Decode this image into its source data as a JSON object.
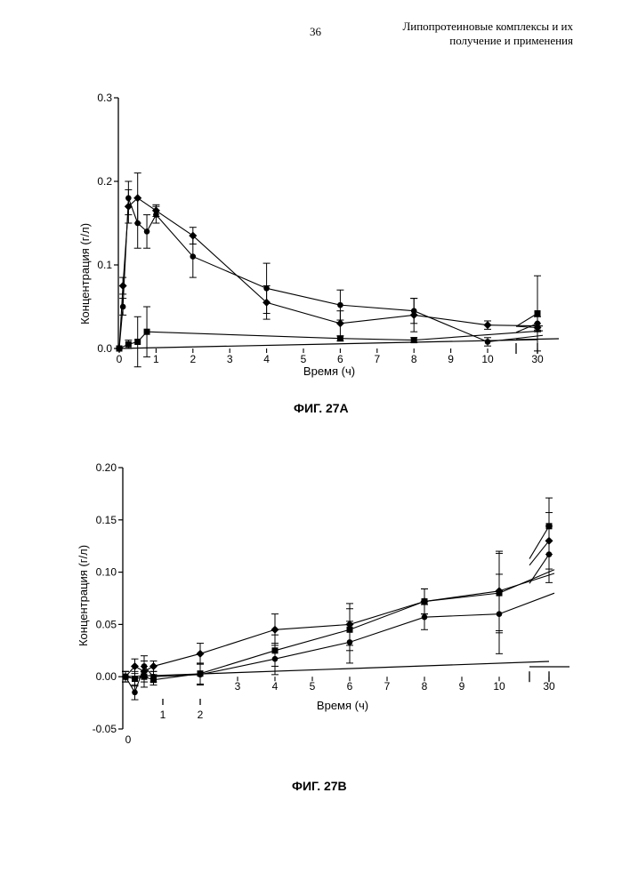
{
  "header": {
    "page_number": "36",
    "title_line1": "Липопротеиновые комплексы и их",
    "title_line2": "получение и применения"
  },
  "figures": [
    {
      "caption": "ФИГ. 27А",
      "xlabel": "Время (ч)",
      "ylabel": "Концентрация (г/л)",
      "y_ticks": [
        "0.0",
        "0.1",
        "0.2",
        "0.3"
      ],
      "x_ticks": [
        "0",
        "1",
        "2",
        "3",
        "4",
        "5",
        "6",
        "7",
        "8",
        "9",
        "10",
        "30"
      ]
    },
    {
      "caption": "ФИГ. 27В",
      "xlabel": "Время (ч)",
      "ylabel": "Концентрация (г/л)",
      "y_ticks": [
        "-0.05",
        "0.00",
        "0.05",
        "0.10",
        "0.15",
        "0.20"
      ],
      "x_ticks_top": [
        "3",
        "4",
        "5",
        "6",
        "7",
        "8",
        "9",
        "10",
        "30"
      ],
      "x_ticks_bottom": [
        "0",
        "1",
        "2"
      ]
    }
  ],
  "chart_data": [
    {
      "type": "line",
      "xlabel": "Время (ч)",
      "ylabel": "Концентрация (г/л)",
      "ylim": [
        0,
        0.3
      ],
      "xlim": [
        0,
        30
      ],
      "axis_break": [
        10.5,
        29
      ],
      "series": [
        {
          "marker": "diamond",
          "points": [
            [
              0,
              0
            ],
            [
              0.1,
              0.075
            ],
            [
              0.25,
              0.17
            ],
            [
              0.5,
              0.18
            ],
            [
              1,
              0.165
            ],
            [
              2,
              0.135
            ],
            [
              4,
              0.055
            ],
            [
              6,
              0.03
            ],
            [
              8,
              0.04
            ],
            [
              10,
              0.028
            ],
            [
              30,
              0.025
            ]
          ],
          "err": [
            0,
            0.01,
            0.02,
            0.03,
            0.007,
            0.01,
            0.02,
            0.015,
            0.02,
            0.005,
            0.005
          ]
        },
        {
          "marker": "circle",
          "points": [
            [
              0,
              0
            ],
            [
              0.1,
              0.05
            ],
            [
              0.25,
              0.18
            ],
            [
              0.5,
              0.15
            ],
            [
              0.75,
              0.14
            ],
            [
              1,
              0.16
            ],
            [
              2,
              0.11
            ],
            [
              4,
              0.072
            ],
            [
              6,
              0.052
            ],
            [
              8,
              0.045
            ],
            [
              10,
              0.008
            ],
            [
              30,
              0.03
            ]
          ],
          "err": [
            0,
            0.01,
            0.02,
            0.03,
            0.02,
            0.01,
            0.025,
            0.03,
            0.018,
            0.015,
            0.005,
            0.008
          ]
        },
        {
          "marker": "square",
          "points": [
            [
              0,
              0
            ],
            [
              0.25,
              0.005
            ],
            [
              0.5,
              0.008
            ],
            [
              0.75,
              0.02
            ],
            [
              6,
              0.012
            ],
            [
              8,
              0.01
            ],
            [
              30,
              0.042
            ]
          ],
          "err": [
            0,
            0.005,
            0.03,
            0.03,
            0.003,
            0.003,
            0.045
          ]
        }
      ]
    },
    {
      "type": "line",
      "xlabel": "Время (ч)",
      "ylabel": "Концентрация (г/л)",
      "ylim": [
        -0.05,
        0.2
      ],
      "xlim": [
        0,
        30
      ],
      "axis_break": [
        10.5,
        29
      ],
      "series": [
        {
          "marker": "diamond",
          "points": [
            [
              0,
              0
            ],
            [
              0.25,
              0.01
            ],
            [
              0.5,
              0.005
            ],
            [
              0.75,
              0.01
            ],
            [
              2,
              0.022
            ],
            [
              4,
              0.045
            ],
            [
              6,
              0.05
            ],
            [
              8,
              0.072
            ],
            [
              10,
              0.082
            ],
            [
              30,
              0.13
            ]
          ],
          "err": [
            0.005,
            0.007,
            0.01,
            0.005,
            0.01,
            0.015,
            0.02,
            0.012,
            0.038,
            0.027
          ]
        },
        {
          "marker": "square",
          "points": [
            [
              0,
              0
            ],
            [
              0.25,
              -0.002
            ],
            [
              0.5,
              0
            ],
            [
              0.75,
              -0.003
            ],
            [
              2,
              0.003
            ],
            [
              4,
              0.025
            ],
            [
              6,
              0.045
            ],
            [
              8,
              0.072
            ],
            [
              10,
              0.08
            ],
            [
              30,
              0.144
            ]
          ],
          "err": [
            0.005,
            0.007,
            0.01,
            0.005,
            0.01,
            0.015,
            0.02,
            0.012,
            0.038,
            0.027
          ]
        },
        {
          "marker": "circle",
          "points": [
            [
              0,
              0
            ],
            [
              0.25,
              -0.015
            ],
            [
              0.5,
              0.01
            ],
            [
              0.75,
              0
            ],
            [
              2,
              0.002
            ],
            [
              4,
              0.017
            ],
            [
              6,
              0.033
            ],
            [
              8,
              0.057
            ],
            [
              10,
              0.06
            ],
            [
              30,
              0.117
            ]
          ],
          "err": [
            0.005,
            0.007,
            0.01,
            0.005,
            0.01,
            0.015,
            0.02,
            0.012,
            0.038,
            0.027
          ]
        }
      ]
    }
  ]
}
